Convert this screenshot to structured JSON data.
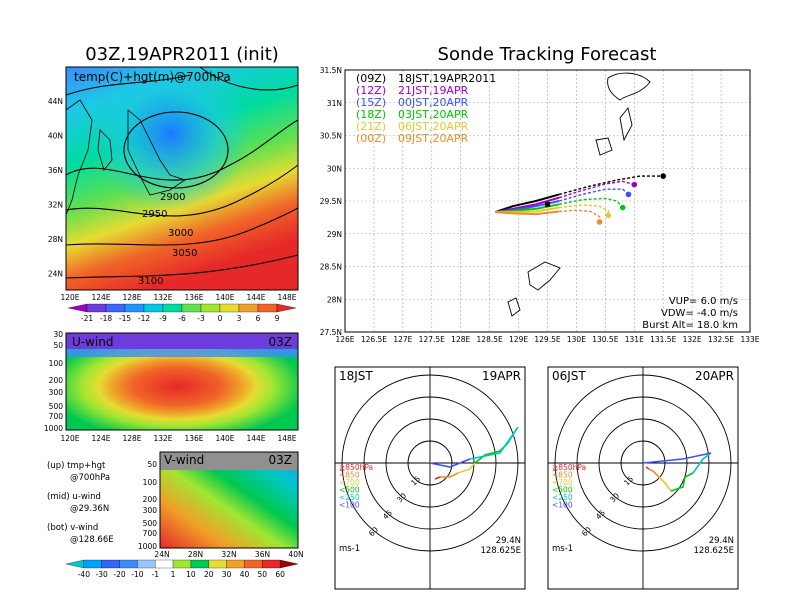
{
  "panels": {
    "map_title": "03Z,19APR2011 (init)",
    "map_subtitle": "temp(C)+hgt(m)@700hPa",
    "contours": [
      "2900",
      "2950",
      "3000",
      "3050",
      "3100"
    ],
    "map_lon_labels": [
      "120E",
      "124E",
      "128E",
      "132E",
      "136E",
      "140E",
      "144E",
      "148E"
    ],
    "map_lat_labels": [
      "44N",
      "40N",
      "36N",
      "32N",
      "28N",
      "24N"
    ],
    "temp_colorbar": {
      "labels": [
        "-21",
        "-18",
        "-15",
        "-12",
        "-9",
        "-6",
        "-3",
        "0",
        "3",
        "6",
        "9"
      ],
      "colors": [
        "#a000c8",
        "#6e3cdc",
        "#3c64ff",
        "#1e96ff",
        "#00c8e6",
        "#00dca0",
        "#60e050",
        "#a0e632",
        "#e6dc32",
        "#f0a028",
        "#f06428",
        "#e62828"
      ]
    },
    "uwind": {
      "label": "U-wind",
      "time": "03Z",
      "p_labels": [
        "30",
        "50",
        "100",
        "200",
        "300",
        "500",
        "700",
        "1000"
      ],
      "lon_labels": [
        "120E",
        "124E",
        "128E",
        "132E",
        "136E",
        "140E",
        "144E",
        "148E"
      ]
    },
    "vwind": {
      "label": "V-wind",
      "time": "03Z",
      "p_labels": [
        "50",
        "100",
        "200",
        "300",
        "500",
        "700",
        "1000"
      ],
      "lat_labels": [
        "24N",
        "28N",
        "32N",
        "36N",
        "40N"
      ]
    },
    "legend_notes": [
      {
        "line1": "(up) tmp+hgt",
        "line2": "@700hPa"
      },
      {
        "line1": "(mid) u-wind",
        "line2": "@29.36N"
      },
      {
        "line1": "(bot) v-wind",
        "line2": "@128.66E"
      }
    ],
    "wind_colorbar": {
      "labels": [
        "-40",
        "-30",
        "-20",
        "-10",
        "-1",
        "1",
        "10",
        "20",
        "30",
        "40",
        "50",
        "60"
      ],
      "colors": [
        "#00c8c8",
        "#00a0ff",
        "#3264ff",
        "#3c8cff",
        "#96c8ff",
        "#ffffff",
        "#a0e632",
        "#00c850",
        "#e6dc32",
        "#f0a028",
        "#f06428",
        "#e62828",
        "#a00000"
      ]
    }
  },
  "tracking": {
    "title": "Sonde Tracking Forecast",
    "lat_labels": [
      "31.5N",
      "31N",
      "30.5N",
      "30N",
      "29.5N",
      "29N",
      "28.5N",
      "28N",
      "27.5N"
    ],
    "lon_labels": [
      "126E",
      "126.5E",
      "127E",
      "127.5E",
      "128E",
      "128.5E",
      "129E",
      "129.5E",
      "130E",
      "130.5E",
      "131E",
      "131.5E",
      "132E",
      "132.5E",
      "133E"
    ],
    "legend": [
      {
        "code": "(09Z)",
        "text": "18JST,19APR2011",
        "color": "#000000"
      },
      {
        "code": "(12Z)",
        "text": "21JST,19APR",
        "color": "#a000c8"
      },
      {
        "code": "(15Z)",
        "text": "00JST,20APR",
        "color": "#3c50ff"
      },
      {
        "code": "(18Z)",
        "text": "03JST,20APR",
        "color": "#00c800"
      },
      {
        "code": "(21Z)",
        "text": "06JST,20APR",
        "color": "#e6c832"
      },
      {
        "code": "(00Z)",
        "text": "09JST,20APR",
        "color": "#f08c28"
      }
    ],
    "params": [
      "VUP= 6.0 m/s",
      "VDW= -4.0 m/s",
      "Burst Alt= 18.0 km"
    ]
  },
  "hodo_left": {
    "time": "18JST",
    "date": "19APR",
    "ring_labels": [
      "15",
      "30",
      "45",
      "60"
    ],
    "levels": [
      {
        "text": "≧850hPa",
        "color": "#e62828"
      },
      {
        "text": "<850",
        "color": "#f08c28"
      },
      {
        "text": "<700",
        "color": "#e6c832"
      },
      {
        "text": "<500",
        "color": "#00c800"
      },
      {
        "text": "<250",
        "color": "#00c8c8"
      },
      {
        "text": "<100",
        "color": "#3c50ff"
      }
    ],
    "unit": "ms-1",
    "lat": "29.4N",
    "lon": "128.625E"
  },
  "hodo_right": {
    "time": "06JST",
    "date": "20APR",
    "ring_labels": [
      "15",
      "30",
      "45",
      "60"
    ],
    "levels": [
      {
        "text": "≧850hPa",
        "color": "#e62828"
      },
      {
        "text": "<850",
        "color": "#f08c28"
      },
      {
        "text": "<700",
        "color": "#e6c832"
      },
      {
        "text": "<500",
        "color": "#00c800"
      },
      {
        "text": "<250",
        "color": "#00c8c8"
      },
      {
        "text": "<100",
        "color": "#3c50ff"
      }
    ],
    "unit": "ms-1",
    "lat": "29.4N",
    "lon": "128.625E"
  },
  "chart_data": {
    "type": "line",
    "title": "Sonde Tracking Forecast",
    "xlabel": "",
    "ylabel": "",
    "xlim": [
      126,
      133
    ],
    "ylim": [
      27.5,
      31.5
    ],
    "launch": [
      129.5,
      29.45
    ],
    "series": [
      {
        "color": "#000000",
        "x": [
          128.6,
          128.9,
          129.3,
          129.7,
          130.2,
          130.7,
          131.1,
          131.5
        ],
        "y": [
          29.33,
          29.42,
          29.5,
          29.6,
          29.72,
          29.82,
          29.88,
          29.88
        ]
      },
      {
        "color": "#a000c8",
        "x": [
          128.6,
          128.9,
          129.3,
          129.7,
          130.1,
          130.5,
          130.8,
          131.0
        ],
        "y": [
          29.33,
          29.38,
          29.45,
          29.55,
          29.66,
          29.76,
          29.8,
          29.75
        ]
      },
      {
        "color": "#3c50ff",
        "x": [
          128.6,
          128.9,
          129.3,
          129.7,
          130.1,
          130.5,
          130.8,
          130.9
        ],
        "y": [
          29.33,
          29.36,
          29.42,
          29.5,
          29.6,
          29.68,
          29.68,
          29.6
        ]
      },
      {
        "color": "#00c800",
        "x": [
          128.6,
          128.9,
          129.3,
          129.7,
          130.1,
          130.5,
          130.7,
          130.8
        ],
        "y": [
          29.33,
          29.35,
          29.38,
          29.45,
          29.52,
          29.54,
          29.5,
          29.4
        ]
      },
      {
        "color": "#e6c832",
        "x": [
          128.6,
          128.9,
          129.3,
          129.7,
          130.1,
          130.4,
          130.55,
          130.55
        ],
        "y": [
          29.33,
          29.33,
          29.34,
          29.4,
          29.44,
          29.42,
          29.35,
          29.28
        ]
      },
      {
        "color": "#f08c28",
        "x": [
          128.6,
          128.9,
          129.3,
          129.7,
          130.0,
          130.25,
          130.4,
          130.4
        ],
        "y": [
          29.33,
          29.31,
          29.3,
          29.34,
          29.36,
          29.34,
          29.26,
          29.18
        ]
      }
    ]
  }
}
